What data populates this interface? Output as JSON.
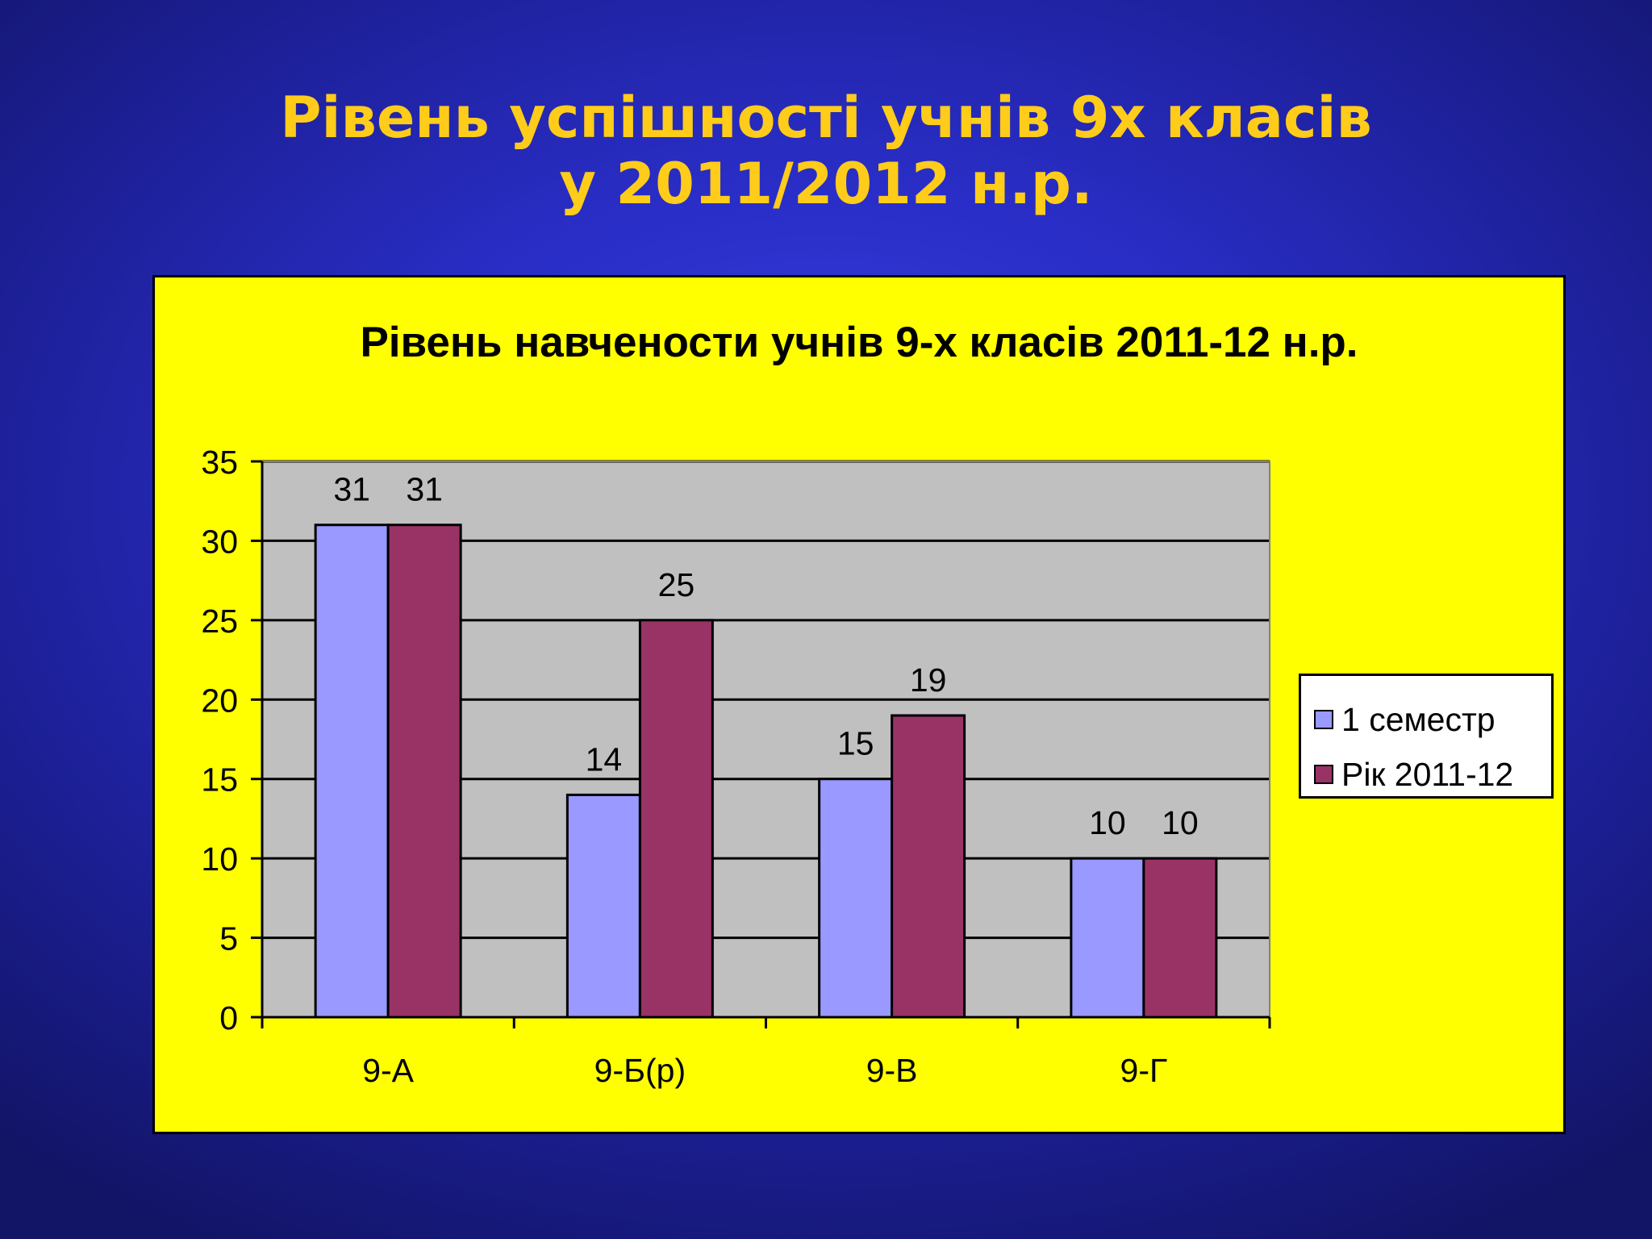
{
  "slide": {
    "title_line1": "Рівень успішності учнів 9х класів",
    "title_line2": "у 2011/2012 н.р."
  },
  "colors": {
    "title": "#ffcc1a",
    "panel": "#ffff00",
    "plot_area": "#c0c0c0",
    "series1": "#9999ff",
    "series2": "#993366"
  },
  "chart_data": {
    "type": "bar",
    "title": "Рівень навчености учнів 9-х класів 2011-12 н.р.",
    "xlabel": "",
    "ylabel": "",
    "categories": [
      "9-А",
      "9-Б(р)",
      "9-В",
      "9-Г"
    ],
    "series": [
      {
        "name": "1 семестр",
        "values": [
          31,
          14,
          15,
          10
        ],
        "color": "#9999ff"
      },
      {
        "name": "Рік 2011-12",
        "values": [
          31,
          25,
          19,
          10
        ],
        "color": "#993366"
      }
    ],
    "ylim": [
      0,
      35
    ],
    "yticks": [
      0,
      5,
      10,
      15,
      20,
      25,
      30,
      35
    ],
    "grid": true,
    "data_labels": true,
    "legend_position": "right"
  }
}
